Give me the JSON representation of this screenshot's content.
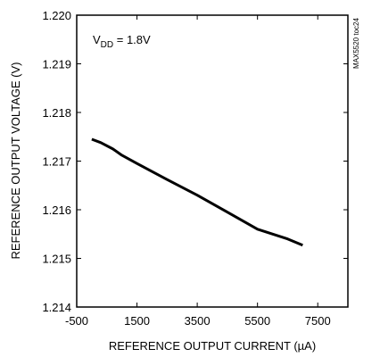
{
  "chart_data": {
    "type": "line",
    "title": "",
    "xlabel": "REFERENCE OUTPUT CURRENT (µA)",
    "ylabel": "REFERENCE OUTPUT VOLTAGE (V)",
    "xlim": [
      -500,
      8500
    ],
    "ylim": [
      1.214,
      1.22
    ],
    "x_ticks": [
      -500,
      1500,
      3500,
      5500,
      7500
    ],
    "x_tick_labels": [
      "-500",
      "1500",
      "3500",
      "5500",
      "7500"
    ],
    "y_ticks": [
      1.214,
      1.215,
      1.216,
      1.217,
      1.218,
      1.219,
      1.22
    ],
    "y_tick_labels": [
      "1.214",
      "1.215",
      "1.216",
      "1.217",
      "1.218",
      "1.219",
      "1.220"
    ],
    "grid": false,
    "annotation": {
      "main": "V",
      "sub": "DD",
      "rest": " = 1.8V"
    },
    "side_label": "MAX5520 toc24",
    "series": [
      {
        "x": [
          0,
          300,
          700,
          1000,
          1500,
          2500,
          3500,
          4500,
          5500,
          6500,
          7000
        ],
        "y": [
          1.21745,
          1.21738,
          1.21725,
          1.21712,
          1.21695,
          1.21662,
          1.2163,
          1.21595,
          1.2156,
          1.2154,
          1.21527
        ]
      }
    ],
    "colors": {
      "line": "#000000",
      "axis": "#000000"
    }
  }
}
